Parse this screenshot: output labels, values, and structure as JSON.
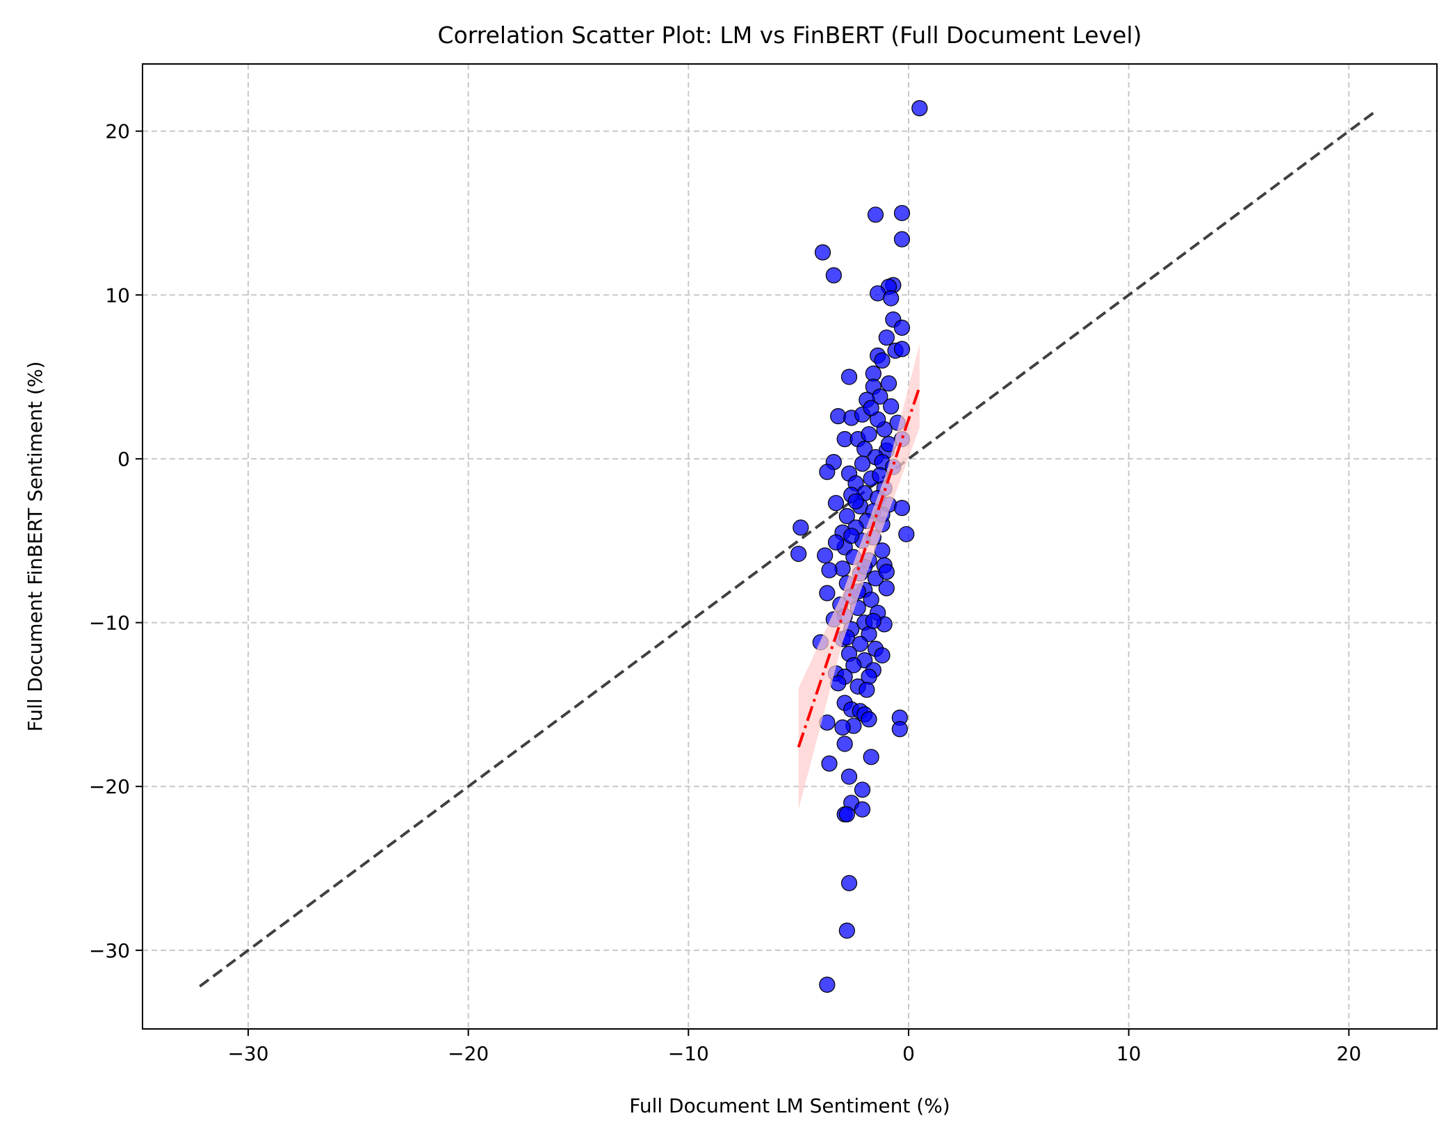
{
  "chart_data": {
    "type": "scatter",
    "title": "Correlation Scatter Plot: LM vs FinBERT (Full Document Level)",
    "xlabel": "Full Document LM Sentiment (%)",
    "ylabel": "Full Document FinBERT Sentiment (%)",
    "xlim": [
      -34.8,
      24.0
    ],
    "ylim": [
      -34.8,
      24.1
    ],
    "xticks": [
      -30,
      -20,
      -10,
      0,
      10,
      20
    ],
    "xtick_labels": [
      "−30",
      "−20",
      "−10",
      "0",
      "10",
      "20"
    ],
    "yticks": [
      -30,
      -20,
      -10,
      0,
      10,
      20
    ],
    "ytick_labels": [
      "−30",
      "−20",
      "−10",
      "0",
      "10",
      "20"
    ],
    "grid": true,
    "colors": {
      "points": "#0000ff",
      "point_edge": "#000000",
      "identity_line": "#404040",
      "regression_line": "#ff0000",
      "confidence_band": "#ffcccc",
      "grid": "#c8c8c8"
    },
    "identity_line": {
      "x": [
        -32.2,
        21.3
      ],
      "y": [
        -32.2,
        21.3
      ],
      "style": "dashed"
    },
    "regression_line": {
      "x": [
        -5.0,
        0.5
      ],
      "y": [
        -17.6,
        4.4
      ],
      "style": "dashdot"
    },
    "confidence_band": {
      "x": [
        -5.0,
        -3.0,
        -1.0,
        0.5
      ],
      "y_low": [
        -21.4,
        -11.2,
        -3.6,
        1.9
      ],
      "y_high": [
        -14.0,
        -8.2,
        -0.8,
        7.0
      ]
    },
    "points": [
      [
        0.5,
        21.4
      ],
      [
        -0.3,
        15.0
      ],
      [
        -1.5,
        14.9
      ],
      [
        -0.3,
        13.4
      ],
      [
        -3.9,
        12.6
      ],
      [
        -3.4,
        11.2
      ],
      [
        -0.7,
        10.6
      ],
      [
        -0.9,
        10.5
      ],
      [
        -1.4,
        10.1
      ],
      [
        -0.8,
        9.8
      ],
      [
        -0.7,
        8.5
      ],
      [
        -0.3,
        8.0
      ],
      [
        -1.0,
        7.4
      ],
      [
        -0.6,
        6.6
      ],
      [
        -0.3,
        6.7
      ],
      [
        -1.4,
        6.3
      ],
      [
        -1.2,
        6.0
      ],
      [
        -1.6,
        5.2
      ],
      [
        -2.7,
        5.0
      ],
      [
        -0.9,
        4.6
      ],
      [
        -1.6,
        4.4
      ],
      [
        -1.3,
        3.8
      ],
      [
        -1.9,
        3.6
      ],
      [
        -0.8,
        3.2
      ],
      [
        -3.2,
        2.6
      ],
      [
        -2.6,
        2.5
      ],
      [
        -2.1,
        2.7
      ],
      [
        -0.5,
        2.2
      ],
      [
        -1.1,
        1.8
      ],
      [
        -2.9,
        1.2
      ],
      [
        -2.3,
        1.2
      ],
      [
        -1.8,
        1.5
      ],
      [
        -0.3,
        1.2
      ],
      [
        -2.0,
        0.6
      ],
      [
        -1.0,
        0.5
      ],
      [
        -1.5,
        0.1
      ],
      [
        -3.4,
        -0.2
      ],
      [
        -2.1,
        -0.3
      ],
      [
        -1.2,
        -0.2
      ],
      [
        -3.7,
        -0.8
      ],
      [
        -2.7,
        -0.9
      ],
      [
        -0.7,
        -0.5
      ],
      [
        -1.7,
        -1.2
      ],
      [
        -2.4,
        -1.5
      ],
      [
        -1.1,
        -1.8
      ],
      [
        -2.0,
        -2.1
      ],
      [
        -2.6,
        -2.2
      ],
      [
        -1.4,
        -2.4
      ],
      [
        -3.3,
        -2.7
      ],
      [
        -0.9,
        -2.8
      ],
      [
        -2.2,
        -2.9
      ],
      [
        -0.3,
        -3.0
      ],
      [
        -1.6,
        -3.2
      ],
      [
        -2.8,
        -3.5
      ],
      [
        -1.9,
        -3.8
      ],
      [
        -1.2,
        -4.0
      ],
      [
        -2.4,
        -4.2
      ],
      [
        -3.0,
        -4.5
      ],
      [
        -0.1,
        -4.6
      ],
      [
        -4.9,
        -4.2
      ],
      [
        -1.6,
        -4.8
      ],
      [
        -2.1,
        -5.0
      ],
      [
        -2.9,
        -5.4
      ],
      [
        -1.2,
        -5.6
      ],
      [
        -3.3,
        -5.1
      ],
      [
        -5.0,
        -5.8
      ],
      [
        -3.8,
        -5.9
      ],
      [
        -2.5,
        -6.0
      ],
      [
        -1.8,
        -6.2
      ],
      [
        -1.1,
        -6.5
      ],
      [
        -3.0,
        -6.7
      ],
      [
        -3.6,
        -6.8
      ],
      [
        -2.2,
        -7.0
      ],
      [
        -1.5,
        -7.3
      ],
      [
        -2.8,
        -7.6
      ],
      [
        -1.0,
        -7.9
      ],
      [
        -2.0,
        -8.0
      ],
      [
        -3.7,
        -8.2
      ],
      [
        -2.6,
        -8.4
      ],
      [
        -1.7,
        -8.6
      ],
      [
        -3.1,
        -8.9
      ],
      [
        -2.3,
        -9.1
      ],
      [
        -1.4,
        -9.4
      ],
      [
        -2.9,
        -9.6
      ],
      [
        -3.4,
        -9.8
      ],
      [
        -2.0,
        -10.0
      ],
      [
        -1.1,
        -10.1
      ],
      [
        -2.6,
        -10.4
      ],
      [
        -1.8,
        -10.7
      ],
      [
        -3.0,
        -11.0
      ],
      [
        -4.0,
        -11.2
      ],
      [
        -2.2,
        -11.3
      ],
      [
        -1.5,
        -11.6
      ],
      [
        -2.7,
        -11.9
      ],
      [
        -1.2,
        -12.0
      ],
      [
        -2.0,
        -12.3
      ],
      [
        -2.5,
        -12.6
      ],
      [
        -1.6,
        -12.9
      ],
      [
        -3.3,
        -13.1
      ],
      [
        -2.9,
        -13.3
      ],
      [
        -1.8,
        -13.3
      ],
      [
        -3.2,
        -13.7
      ],
      [
        -2.3,
        -13.9
      ],
      [
        -1.9,
        -14.1
      ],
      [
        -2.9,
        -14.9
      ],
      [
        -2.6,
        -15.3
      ],
      [
        -2.2,
        -15.4
      ],
      [
        -2.0,
        -15.6
      ],
      [
        -1.8,
        -15.9
      ],
      [
        -0.4,
        -15.8
      ],
      [
        -3.7,
        -16.1
      ],
      [
        -2.5,
        -16.3
      ],
      [
        -3.0,
        -16.4
      ],
      [
        -0.4,
        -16.5
      ],
      [
        -2.9,
        -17.4
      ],
      [
        -1.7,
        -18.2
      ],
      [
        -3.6,
        -18.6
      ],
      [
        -2.7,
        -19.4
      ],
      [
        -2.1,
        -20.2
      ],
      [
        -2.6,
        -21.0
      ],
      [
        -2.1,
        -21.4
      ],
      [
        -2.9,
        -21.7
      ],
      [
        -2.8,
        -21.7
      ],
      [
        -2.7,
        -25.9
      ],
      [
        -2.8,
        -28.8
      ],
      [
        -3.7,
        -32.1
      ],
      [
        -2.4,
        -2.6
      ],
      [
        -1.3,
        -1.0
      ],
      [
        -2.0,
        -6.6
      ],
      [
        -1.0,
        -6.9
      ],
      [
        -2.6,
        -4.7
      ],
      [
        -1.6,
        -9.9
      ],
      [
        -2.3,
        -8.1
      ],
      [
        -1.2,
        -3.4
      ],
      [
        -2.8,
        -10.9
      ],
      [
        -1.4,
        2.4
      ],
      [
        -0.9,
        0.9
      ],
      [
        -1.7,
        3.1
      ]
    ]
  }
}
